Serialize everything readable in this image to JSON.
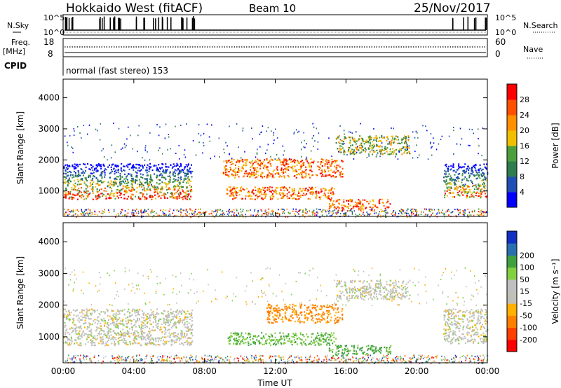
{
  "header": {
    "station": "Hokkaido West (fitACF)",
    "beam": "Beam 10",
    "date": "25/Nov/2017"
  },
  "strip": {
    "nsky_label": "N.Sky",
    "nsearch_label": "N.Search",
    "freq_label": "Freq.",
    "freq_unit": "[MHz]",
    "nave_label": "Nave",
    "cpid_label": "CPID",
    "cpid_value": "normal (fast stereo) 153",
    "left_top_tick": "10^5",
    "left_bottom_tick": "10^0",
    "right_top_tick": "10^5",
    "right_bottom_tick": "10^0",
    "freq_top": "18",
    "freq_bottom": "8",
    "nave_top": "60",
    "nave_bottom": "0"
  },
  "colors": {
    "power": [
      "#0000ff",
      "#1f4fb4",
      "#2e7d4f",
      "#4c9f3c",
      "#f0c000",
      "#ff9000",
      "#ff5000",
      "#ff0000"
    ],
    "velocity": [
      "#ff0000",
      "#ff4000",
      "#ff8000",
      "#ffb000",
      "#c0c0b8",
      "#c0c0c0",
      "#80d040",
      "#40a040",
      "#2a6fb0",
      "#1030c0"
    ]
  },
  "chart_data": [
    {
      "type": "heatmap",
      "title": "",
      "xlabel": "Time UT",
      "ylabel": "Slant Range [km]",
      "xticks": [
        "00:00",
        "04:00",
        "08:00",
        "12:00",
        "16:00",
        "20:00",
        "00:00"
      ],
      "xlim": [
        0,
        24
      ],
      "ylim": [
        180,
        4600
      ],
      "yticks": [
        1000,
        2000,
        3000,
        4000
      ],
      "colorbar_label": "Power [dB]",
      "colorbar_ticks": [
        "4",
        "8",
        "12",
        "16",
        "20",
        "24",
        "28"
      ],
      "clim": [
        0,
        32
      ],
      "regions": [
        {
          "t0": 0.0,
          "t1": 7.3,
          "r0": 750,
          "r1": 1900,
          "level": "mixed_low"
        },
        {
          "t0": 9.0,
          "t1": 15.8,
          "r0": 1450,
          "r1": 2050,
          "level": "mixed_high"
        },
        {
          "t0": 9.2,
          "t1": 15.4,
          "r0": 750,
          "r1": 1150,
          "level": "mixed_high"
        },
        {
          "t0": 15.4,
          "t1": 19.6,
          "r0": 2200,
          "r1": 2800,
          "level": "mixed_mid"
        },
        {
          "t0": 15.0,
          "t1": 18.5,
          "r0": 450,
          "r1": 750,
          "level": "mixed_high"
        },
        {
          "t0": 21.5,
          "t1": 24.0,
          "r0": 800,
          "r1": 1900,
          "level": "mixed_low"
        }
      ]
    },
    {
      "type": "heatmap",
      "title": "",
      "xlabel": "Time UT",
      "ylabel": "Slant Range [km]",
      "xticks": [
        "00:00",
        "04:00",
        "08:00",
        "12:00",
        "16:00",
        "20:00",
        "00:00"
      ],
      "xlim": [
        0,
        24
      ],
      "ylim": [
        180,
        4600
      ],
      "yticks": [
        1000,
        2000,
        3000,
        4000
      ],
      "colorbar_label": "Velocity [m s⁻¹]",
      "colorbar_ticks": [
        "-200",
        "-100",
        "-50",
        "-15",
        "15",
        "50",
        "100",
        "200"
      ],
      "clim": [
        -250,
        250
      ],
      "regions": [
        {
          "t0": 0.0,
          "t1": 7.3,
          "r0": 750,
          "r1": 1900,
          "velocity": 0
        },
        {
          "t0": 11.5,
          "t1": 15.8,
          "r0": 1450,
          "r1": 2050,
          "velocity": -60
        },
        {
          "t0": 9.2,
          "t1": 15.4,
          "r0": 750,
          "r1": 1150,
          "velocity": 50
        },
        {
          "t0": 15.4,
          "t1": 19.6,
          "r0": 2200,
          "r1": 2800,
          "velocity": 0
        },
        {
          "t0": 15.0,
          "t1": 18.5,
          "r0": 450,
          "r1": 750,
          "velocity": 60
        },
        {
          "t0": 21.5,
          "t1": 24.0,
          "r0": 800,
          "r1": 1900,
          "velocity": 0
        }
      ]
    }
  ]
}
